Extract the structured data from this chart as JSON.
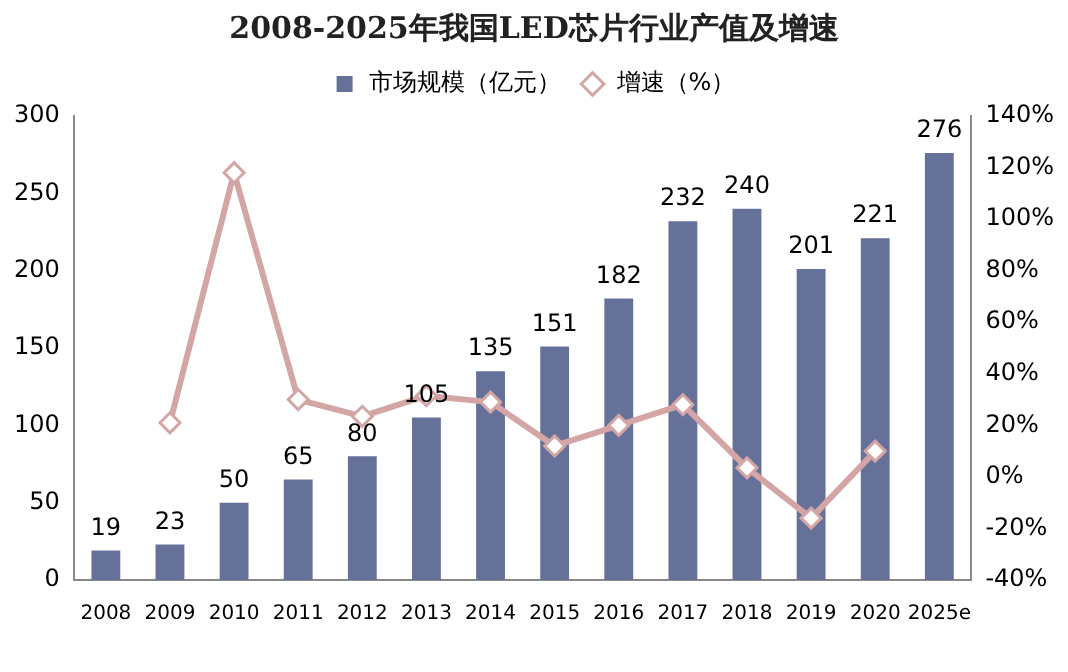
{
  "chart_data": {
    "type": "bar",
    "title": "2008-2025年我国LED芯片行业产值及增速",
    "categories": [
      "2008",
      "2009",
      "2010",
      "2011",
      "2012",
      "2013",
      "2014",
      "2015",
      "2016",
      "2017",
      "2018",
      "2019",
      "2020",
      "2025e"
    ],
    "series": [
      {
        "name": "市场规模（亿元）",
        "color": "#657199",
        "values": [
          19,
          23,
          50,
          65,
          80,
          105,
          135,
          151,
          182,
          232,
          240,
          201,
          221,
          276
        ],
        "value_labels": [
          "19",
          "23",
          "50",
          "65",
          "80",
          "105",
          "135",
          "151",
          "182",
          "232",
          "240",
          "201",
          "221",
          "276"
        ]
      },
      {
        "name": "增速（%）",
        "type": "line",
        "axis": "y2",
        "color": "#d4a5a5",
        "marker": "diamond",
        "values": [
          null,
          21,
          118,
          30,
          23.5,
          31.5,
          29,
          12,
          20,
          28,
          3.5,
          -16,
          10,
          null
        ]
      }
    ],
    "ylim": [
      0,
      300
    ],
    "yticks": [
      0,
      50,
      100,
      150,
      200,
      250,
      300
    ],
    "y2lim": [
      -40,
      140
    ],
    "y2ticks": [
      {
        "value": -40,
        "label": "-40%"
      },
      {
        "value": -20,
        "label": "-20%"
      },
      {
        "value": 0,
        "label": "0%"
      },
      {
        "value": 20,
        "label": "20%"
      },
      {
        "value": 40,
        "label": "40%"
      },
      {
        "value": 60,
        "label": "60%"
      },
      {
        "value": 80,
        "label": "80%"
      },
      {
        "value": 100,
        "label": "100%"
      },
      {
        "value": 120,
        "label": "120%"
      },
      {
        "value": 140,
        "label": "140%"
      }
    ],
    "grid": false,
    "legend": "top"
  }
}
